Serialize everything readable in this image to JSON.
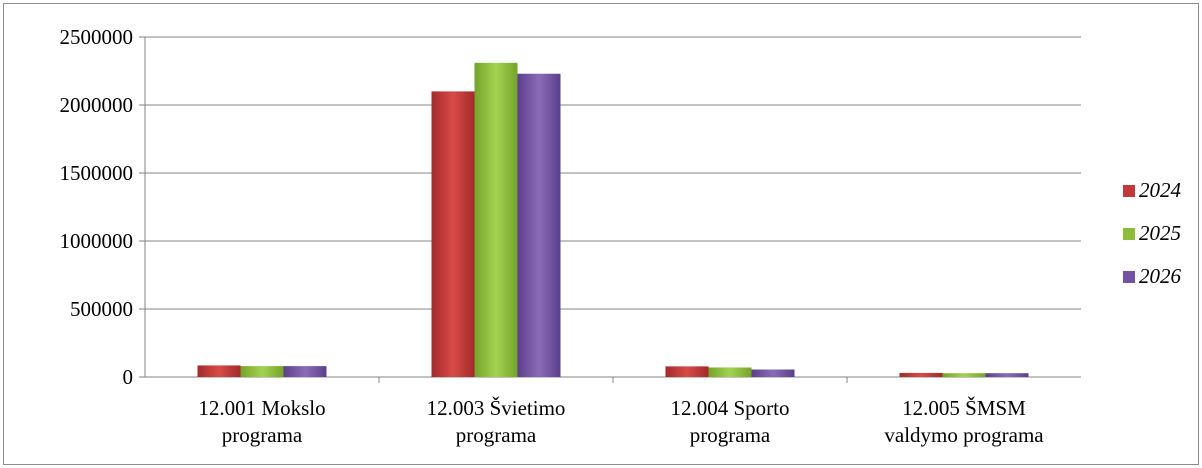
{
  "chart_data": {
    "type": "bar",
    "categories": [
      [
        "12.001 Mokslo",
        "programa"
      ],
      [
        "12.003 Švietimo",
        "programa"
      ],
      [
        "12.004 Sporto",
        "programa"
      ],
      [
        "12.005 ŠMSM",
        "valdymo programa"
      ]
    ],
    "series": [
      {
        "name": "2024",
        "values": [
          85000,
          2100000,
          78000,
          30000
        ]
      },
      {
        "name": "2025",
        "values": [
          80000,
          2310000,
          70000,
          28000
        ]
      },
      {
        "name": "2026",
        "values": [
          80000,
          2230000,
          55000,
          28000
        ]
      }
    ],
    "ylim": [
      0,
      2500000
    ],
    "yticks": [
      "0",
      "500000",
      "1000000",
      "1500000",
      "2000000",
      "2500000"
    ],
    "grid": true,
    "legend_position": "right",
    "colors": {
      "2024": "#c0393a",
      "2025": "#8dbd3a",
      "2026": "#7453a2",
      "grid": "#868686"
    }
  }
}
